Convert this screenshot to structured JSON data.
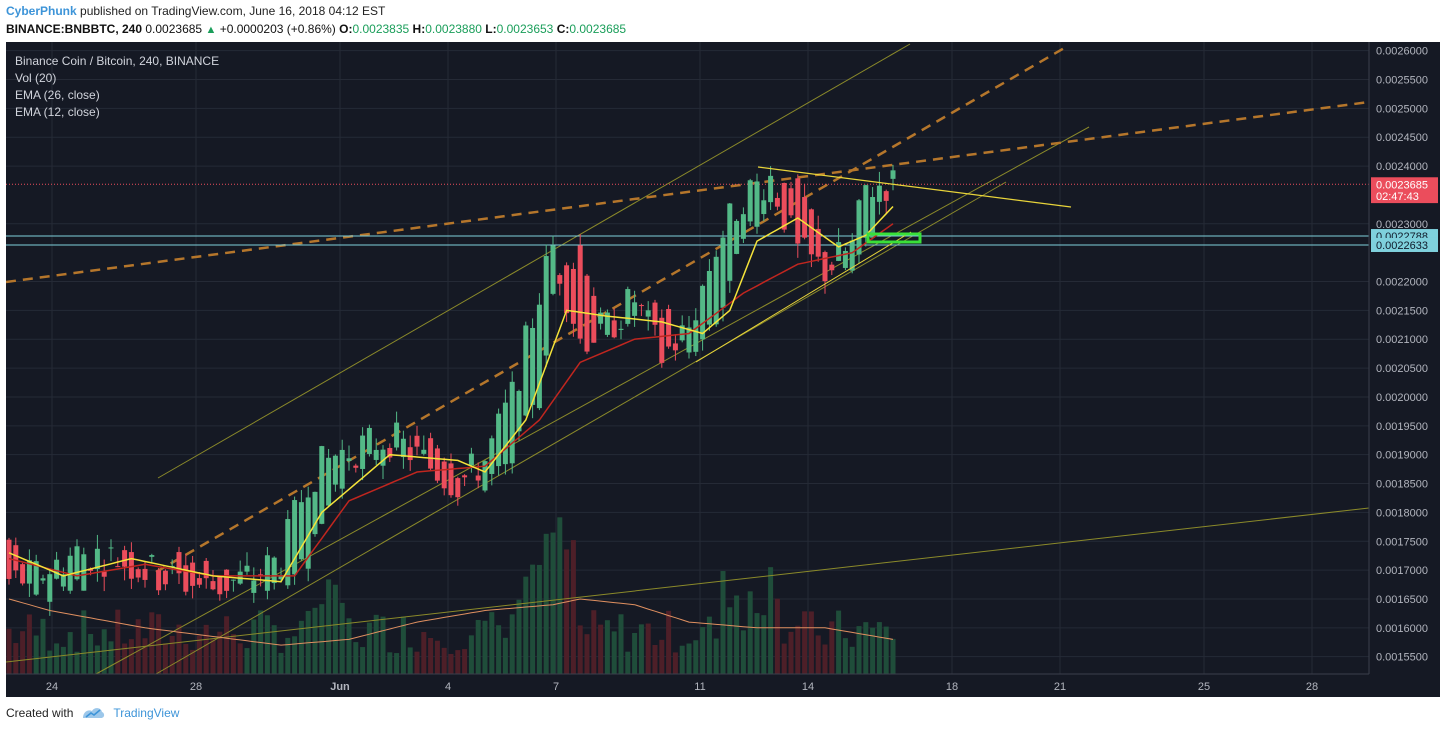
{
  "header": {
    "author": "CyberPhunk",
    "published_text": "published on TradingView.com, June 16, 2018 04:12 EST",
    "symbol": "BINANCE:BNBBTC",
    "interval": "240",
    "last": "0.0023685",
    "change": "+0.0000203 (+0.86%)",
    "o_label": "O:",
    "o_value": "0.0023835",
    "h_label": "H:",
    "h_value": "0.0023880",
    "l_label": "L:",
    "l_value": "0.0023653",
    "c_label": "C:",
    "c_value": "0.0023685"
  },
  "legend": {
    "title": "Binance Coin / Bitcoin, 240, BINANCE",
    "vol": "Vol (20)",
    "ema26": "EMA (26, close)",
    "ema12": "EMA (12, close)"
  },
  "footer": {
    "created_with": "Created with",
    "brand": "TradingView"
  },
  "colors": {
    "background": "#151924",
    "grid": "#252a36",
    "up": "#53b987",
    "down": "#eb4d5c",
    "ema12": "#f5e33a",
    "ema26": "#c0261f",
    "dashed_trend": "#b5762b",
    "channel": "#8b8a2a",
    "hline": "#7fd1dd",
    "target_box": "#39e039",
    "resistance": "#e8d43a"
  },
  "chart_data": {
    "type": "candlestick",
    "ylim": [
      0.00152,
      0.002615
    ],
    "x_tick_labels": [
      "24",
      "28",
      "Jun",
      "4",
      "7",
      "11",
      "14",
      "18",
      "21",
      "25",
      "28"
    ],
    "y_tick_labels": [
      "0.0026000",
      "0.0025500",
      "0.0025000",
      "0.0024500",
      "0.0024000",
      "0.0023000",
      "0.0022000",
      "0.0021500",
      "0.0021000",
      "0.0020500",
      "0.0020000",
      "0.0019500",
      "0.0019000",
      "0.0018500",
      "0.0018000",
      "0.0017500",
      "0.0017000",
      "0.0016500",
      "0.0016000",
      "0.0015500"
    ],
    "price_labels": [
      {
        "value": 0.0023685,
        "text": "0.0023685",
        "color": "#eb4d5c"
      },
      {
        "value": 0.002348,
        "text": "02:47:43",
        "color": "#eb4d5c"
      },
      {
        "value": 0.0022788,
        "text": "0.0022788",
        "color": "#7fd1dd"
      },
      {
        "value": 0.0022633,
        "text": "0.0022633",
        "color": "#7fd1dd"
      }
    ],
    "ohlc_anchors": [
      [
        0,
        0.00175,
        0.00168
      ],
      [
        4,
        0.00166,
        0.00169
      ],
      [
        10,
        0.00168,
        0.00173
      ],
      [
        16,
        0.00173,
        0.00172
      ],
      [
        22,
        0.00172,
        0.00169
      ],
      [
        30,
        0.0017,
        0.00167
      ],
      [
        36,
        0.00167,
        0.00169
      ],
      [
        40,
        0.00169,
        0.00172
      ],
      [
        44,
        0.00172,
        0.00186
      ],
      [
        48,
        0.00186,
        0.0019
      ],
      [
        56,
        0.00189,
        0.00193
      ],
      [
        62,
        0.00193,
        0.00188
      ],
      [
        66,
        0.00188,
        0.00185
      ],
      [
        70,
        0.00185,
        0.00189
      ],
      [
        74,
        0.00189,
        0.002
      ],
      [
        78,
        0.002,
        0.00218
      ],
      [
        80,
        0.00218,
        0.00226
      ],
      [
        84,
        0.00226,
        0.0021
      ],
      [
        88,
        0.0021,
        0.00212
      ],
      [
        92,
        0.00214,
        0.00217
      ],
      [
        96,
        0.00216,
        0.00207
      ],
      [
        100,
        0.00206,
        0.00212
      ],
      [
        104,
        0.00212,
        0.00226
      ],
      [
        108,
        0.00226,
        0.00235
      ],
      [
        112,
        0.00235,
        0.00238
      ],
      [
        116,
        0.00238,
        0.00225
      ],
      [
        120,
        0.00225,
        0.00222
      ],
      [
        124,
        0.00222,
        0.00226
      ],
      [
        126,
        0.00226,
        0.00236
      ],
      [
        129,
        0.00236,
        0.00237
      ]
    ],
    "ema12_anchors": [
      [
        0,
        0.00173
      ],
      [
        8,
        0.00169
      ],
      [
        18,
        0.00172
      ],
      [
        30,
        0.00169
      ],
      [
        40,
        0.00168
      ],
      [
        46,
        0.0018
      ],
      [
        56,
        0.0019
      ],
      [
        66,
        0.00189
      ],
      [
        70,
        0.00187
      ],
      [
        76,
        0.00196
      ],
      [
        82,
        0.00215
      ],
      [
        88,
        0.00214
      ],
      [
        96,
        0.00213
      ],
      [
        102,
        0.00211
      ],
      [
        106,
        0.00215
      ],
      [
        110,
        0.00227
      ],
      [
        116,
        0.00231
      ],
      [
        122,
        0.00226
      ],
      [
        126,
        0.00228
      ],
      [
        130,
        0.00233
      ]
    ],
    "ema26_anchors": [
      [
        0,
        0.00172
      ],
      [
        10,
        0.00169
      ],
      [
        20,
        0.00171
      ],
      [
        30,
        0.00169
      ],
      [
        42,
        0.00169
      ],
      [
        50,
        0.00182
      ],
      [
        60,
        0.00187
      ],
      [
        70,
        0.00188
      ],
      [
        78,
        0.00196
      ],
      [
        84,
        0.00206
      ],
      [
        92,
        0.0021
      ],
      [
        100,
        0.00211
      ],
      [
        108,
        0.00218
      ],
      [
        116,
        0.00223
      ],
      [
        124,
        0.00225
      ],
      [
        130,
        0.0023
      ]
    ],
    "volume_ma_anchors": [
      [
        0,
        0.00165
      ],
      [
        6,
        0.00163
      ],
      [
        20,
        0.0016
      ],
      [
        40,
        0.00157
      ],
      [
        50,
        0.00158
      ],
      [
        60,
        0.00161
      ],
      [
        70,
        0.00163
      ],
      [
        80,
        0.00164
      ],
      [
        84,
        0.00165
      ],
      [
        92,
        0.00164
      ],
      [
        100,
        0.00161
      ],
      [
        110,
        0.0016
      ],
      [
        120,
        0.0016
      ],
      [
        130,
        0.00158
      ]
    ],
    "bar_count": 131
  }
}
